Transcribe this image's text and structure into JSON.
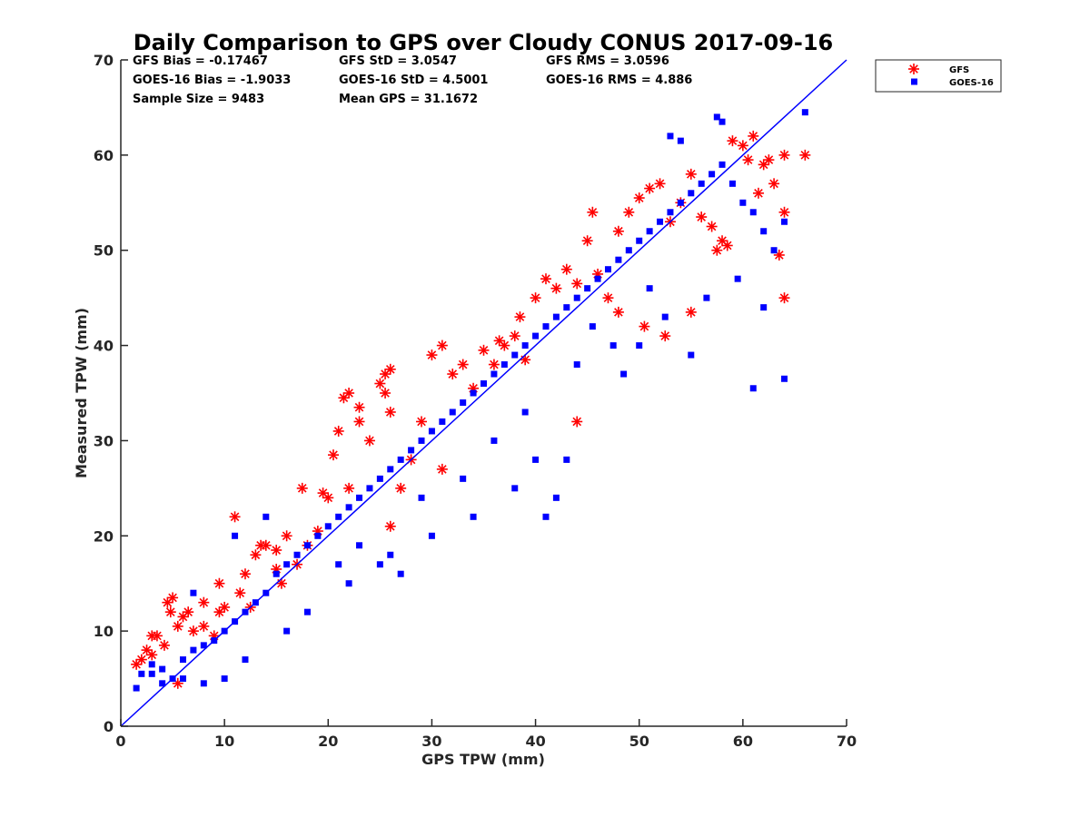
{
  "chart_data": {
    "type": "scatter",
    "title": "Daily Comparison to GPS over Cloudy CONUS 2017-09-16",
    "xlabel": "GPS TPW (mm)",
    "ylabel": "Measured TPW (mm)",
    "xlim": [
      0,
      70
    ],
    "ylim": [
      0,
      70
    ],
    "xticks": [
      "0",
      "10",
      "20",
      "30",
      "40",
      "50",
      "60",
      "70"
    ],
    "yticks": [
      "0",
      "10",
      "20",
      "30",
      "40",
      "50",
      "60",
      "70"
    ],
    "grid": false,
    "legend_position": "outside-top-right",
    "reference_line": {
      "type": "one-to-one",
      "from": [
        0,
        0
      ],
      "to": [
        70,
        70
      ],
      "color": "#0000ff"
    },
    "stats": [
      [
        "GFS Bias = -0.17467",
        "GFS StD = 3.0547",
        "GFS RMS = 3.0596"
      ],
      [
        "GOES-16 Bias = -1.9033",
        "GOES-16 StD = 4.5001",
        "GOES-16 RMS = 4.886"
      ],
      [
        "Sample Size = 9483",
        "Mean GPS = 31.1672",
        ""
      ]
    ],
    "series": [
      {
        "name": "GFS",
        "marker": "asterisk",
        "color": "#ff0000",
        "x": [
          1.5,
          2.0,
          2.5,
          3.0,
          3.5,
          4.2,
          4.8,
          5.0,
          5.5,
          6.0,
          6.5,
          7.0,
          8.0,
          9.0,
          9.5,
          10.0,
          11.0,
          11.5,
          12.0,
          13.0,
          14.0,
          15.0,
          15.5,
          16.0,
          17.0,
          18.0,
          19.0,
          19.5,
          20.0,
          21.0,
          22.0,
          23.0,
          24.0,
          25.0,
          25.5,
          26.0,
          27.0,
          28.0,
          29.0,
          30.0,
          31.0,
          32.0,
          33.0,
          34.0,
          35.0,
          36.0,
          37.0,
          38.0,
          39.0,
          40.0,
          41.0,
          42.0,
          43.0,
          44.0,
          45.0,
          46.0,
          47.0,
          48.0,
          49.0,
          50.0,
          51.0,
          52.0,
          53.0,
          54.0,
          55.0,
          56.0,
          57.0,
          58.0,
          59.0,
          60.0,
          61.0,
          62.0,
          63.0,
          64.0,
          66.0,
          60.5,
          61.5,
          62.5,
          64.0,
          63.5,
          58.5,
          64.0,
          57.5,
          50.5,
          55.0,
          36.5,
          23.0,
          25.5,
          26.0,
          21.5,
          20.5,
          17.5,
          13.5,
          9.5,
          5.5,
          4.5,
          3.0,
          8.0,
          12.5,
          15.0,
          22.0,
          26.0,
          31.0,
          38.5,
          44.0,
          48.0,
          52.5,
          45.5
        ],
        "y": [
          6.5,
          7.0,
          8.0,
          7.5,
          9.5,
          8.5,
          12.0,
          13.5,
          10.5,
          11.5,
          12.0,
          10.0,
          13.0,
          9.5,
          12.0,
          12.5,
          22.0,
          14.0,
          16.0,
          18.0,
          19.0,
          18.5,
          15.0,
          20.0,
          17.0,
          19.0,
          20.5,
          24.5,
          24.0,
          31.0,
          35.0,
          32.0,
          30.0,
          36.0,
          37.0,
          33.0,
          25.0,
          28.0,
          32.0,
          39.0,
          40.0,
          37.0,
          38.0,
          35.5,
          39.5,
          38.0,
          40.0,
          41.0,
          38.5,
          45.0,
          47.0,
          46.0,
          48.0,
          46.5,
          51.0,
          47.5,
          45.0,
          52.0,
          54.0,
          55.5,
          56.5,
          57.0,
          53.0,
          55.0,
          58.0,
          53.5,
          52.5,
          51.0,
          61.5,
          61.0,
          62.0,
          59.0,
          57.0,
          60.0,
          60.0,
          59.5,
          56.0,
          59.5,
          45.0,
          49.5,
          50.5,
          54.0,
          50.0,
          42.0,
          43.5,
          40.5,
          33.5,
          35.0,
          37.5,
          34.5,
          28.5,
          25.0,
          19.0,
          15.0,
          4.5,
          13.0,
          9.5,
          10.5,
          12.5,
          16.5,
          25.0,
          21.0,
          27.0,
          43.0,
          32.0,
          43.5,
          41.0,
          54.0
        ]
      },
      {
        "name": "GOES-16",
        "marker": "square",
        "color": "#0000ff",
        "x": [
          1.5,
          2.0,
          3.0,
          4.0,
          5.0,
          6.0,
          7.0,
          8.0,
          9.0,
          10.0,
          11.0,
          12.0,
          13.0,
          14.0,
          15.0,
          16.0,
          17.0,
          18.0,
          19.0,
          20.0,
          21.0,
          22.0,
          23.0,
          24.0,
          25.0,
          26.0,
          27.0,
          28.0,
          29.0,
          30.0,
          31.0,
          32.0,
          33.0,
          34.0,
          35.0,
          36.0,
          37.0,
          38.0,
          39.0,
          40.0,
          41.0,
          42.0,
          43.0,
          44.0,
          45.0,
          46.0,
          47.0,
          48.0,
          49.0,
          50.0,
          51.0,
          52.0,
          53.0,
          54.0,
          55.0,
          56.0,
          57.0,
          58.0,
          59.0,
          60.0,
          61.0,
          62.0,
          63.0,
          64.0,
          66.0,
          57.5,
          58.0,
          53.0,
          54.0,
          61.0,
          64.0,
          62.0,
          55.0,
          50.0,
          51.0,
          41.0,
          42.0,
          43.0,
          27.0,
          26.0,
          25.0,
          30.0,
          34.0,
          38.0,
          40.0,
          36.0,
          39.0,
          44.0,
          33.0,
          29.0,
          22.0,
          18.0,
          16.0,
          12.0,
          10.0,
          8.0,
          6.0,
          4.0,
          3.0,
          7.0,
          11.0,
          14.0,
          21.0,
          23.0,
          47.5,
          48.5,
          45.5,
          52.5,
          56.5,
          59.5
        ],
        "y": [
          4.0,
          5.5,
          6.5,
          6.0,
          5.0,
          7.0,
          8.0,
          8.5,
          9.0,
          10.0,
          11.0,
          12.0,
          13.0,
          14.0,
          16.0,
          17.0,
          18.0,
          19.0,
          20.0,
          21.0,
          22.0,
          23.0,
          24.0,
          25.0,
          26.0,
          27.0,
          28.0,
          29.0,
          30.0,
          31.0,
          32.0,
          33.0,
          34.0,
          35.0,
          36.0,
          37.0,
          38.0,
          39.0,
          40.0,
          41.0,
          42.0,
          43.0,
          44.0,
          45.0,
          46.0,
          47.0,
          48.0,
          49.0,
          50.0,
          51.0,
          52.0,
          53.0,
          54.0,
          55.0,
          56.0,
          57.0,
          58.0,
          59.0,
          57.0,
          55.0,
          54.0,
          52.0,
          50.0,
          53.0,
          64.5,
          64.0,
          63.5,
          62.0,
          61.5,
          35.5,
          36.5,
          44.0,
          39.0,
          40.0,
          46.0,
          22.0,
          24.0,
          28.0,
          16.0,
          18.0,
          17.0,
          20.0,
          22.0,
          25.0,
          28.0,
          30.0,
          33.0,
          38.0,
          26.0,
          24.0,
          15.0,
          12.0,
          10.0,
          7.0,
          5.0,
          4.5,
          5.0,
          4.5,
          5.5,
          14.0,
          20.0,
          22.0,
          17.0,
          19.0,
          40.0,
          37.0,
          42.0,
          43.0,
          45.0,
          47.0
        ]
      }
    ]
  }
}
